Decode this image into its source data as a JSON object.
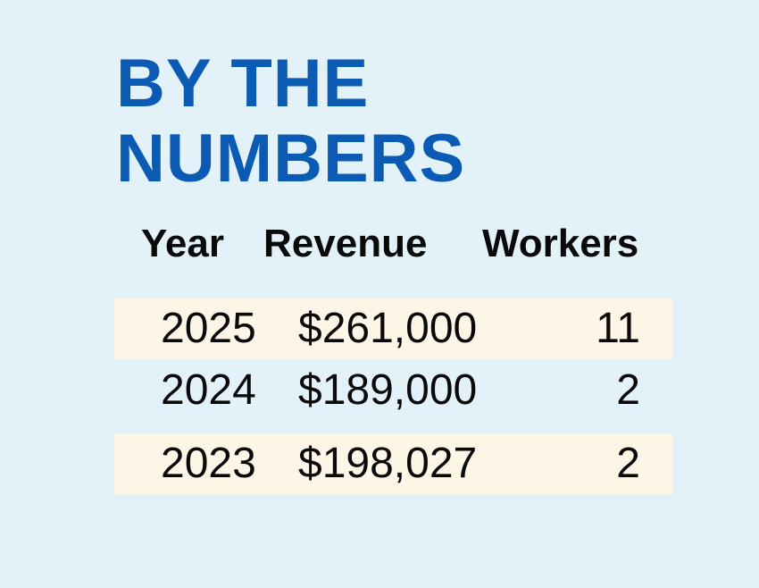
{
  "title": {
    "line1": "BY THE",
    "line2": "NUMBERS"
  },
  "colors": {
    "background": "#e3f2f9",
    "title": "#0b5bb5",
    "row_shade": "#fdf6e6",
    "text": "#0a0a0a"
  },
  "chart_data": {
    "type": "table",
    "title": "BY THE NUMBERS",
    "columns": [
      "Year",
      "Revenue",
      "Workers"
    ],
    "rows": [
      {
        "year": "2025",
        "revenue": "$261,000",
        "workers": "11",
        "shaded": true
      },
      {
        "year": "2024",
        "revenue": "$189,000",
        "workers": "2",
        "shaded": false
      },
      {
        "year": "2023",
        "revenue": "$198,027",
        "workers": "2",
        "shaded": true
      }
    ]
  }
}
